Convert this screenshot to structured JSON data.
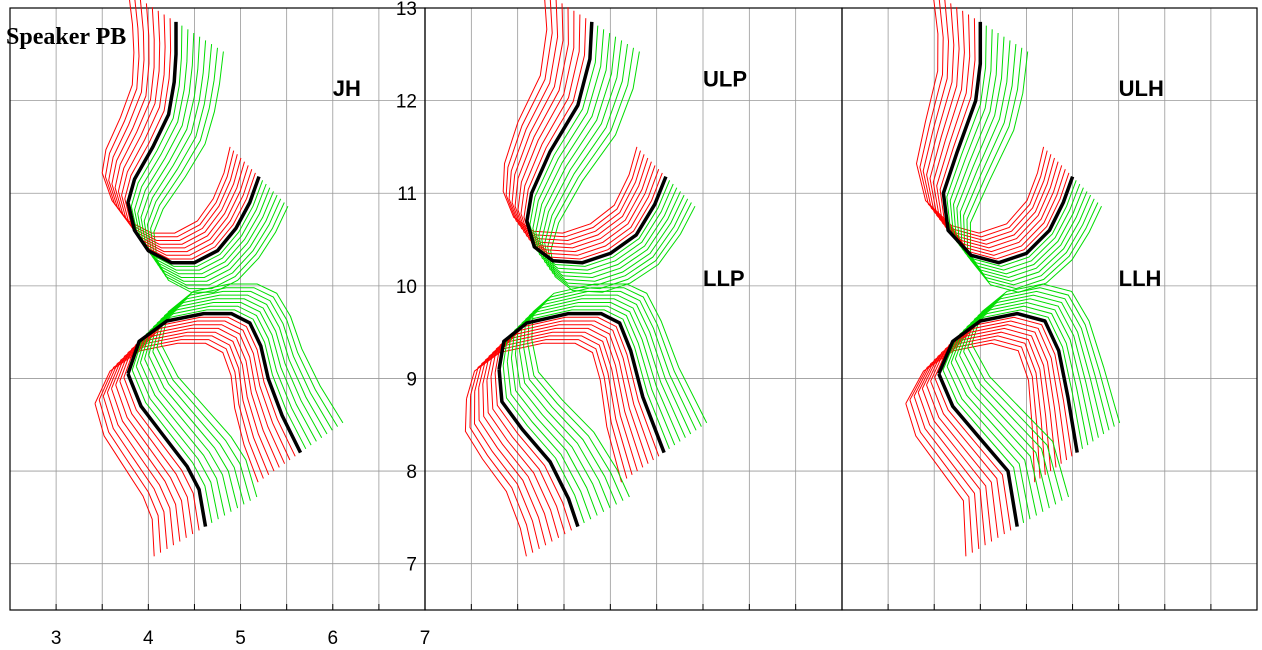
{
  "title": "Speaker PB",
  "colors": {
    "red": "#ff0000",
    "green": "#00dd00",
    "black": "#000000",
    "grid": "#999999"
  },
  "chart_data": [
    {
      "type": "line",
      "panel": "left",
      "xlim": [
        2.5,
        7
      ],
      "ylim": [
        6.5,
        13
      ],
      "xticks": [
        "3",
        "4",
        "5",
        "6",
        "7"
      ],
      "yticks": [],
      "grid": true,
      "labels": [
        {
          "text": "JH",
          "x": 6.0,
          "y": 12.05
        }
      ],
      "series": [
        {
          "color": "black",
          "points": [
            [
              4.3,
              12.85
            ],
            [
              4.3,
              12.5
            ],
            [
              4.28,
              12.2
            ],
            [
              4.22,
              11.85
            ],
            [
              4.05,
              11.5
            ],
            [
              3.85,
              11.15
            ],
            [
              3.78,
              10.9
            ],
            [
              3.85,
              10.6
            ],
            [
              4.0,
              10.38
            ],
            [
              4.25,
              10.25
            ],
            [
              4.5,
              10.25
            ],
            [
              4.75,
              10.38
            ],
            [
              4.95,
              10.62
            ],
            [
              5.1,
              10.9
            ],
            [
              5.2,
              11.18
            ]
          ]
        },
        {
          "color": "black",
          "points": [
            [
              3.78,
              9.05
            ],
            [
              3.9,
              9.4
            ],
            [
              4.2,
              9.62
            ],
            [
              4.6,
              9.7
            ],
            [
              4.9,
              9.7
            ],
            [
              5.1,
              9.6
            ],
            [
              5.22,
              9.35
            ],
            [
              5.3,
              9.0
            ],
            [
              5.45,
              8.6
            ],
            [
              5.65,
              8.2
            ]
          ]
        },
        {
          "color": "black",
          "points": [
            [
              3.78,
              9.05
            ],
            [
              3.92,
              8.7
            ],
            [
              4.15,
              8.4
            ],
            [
              4.42,
              8.05
            ],
            [
              4.55,
              7.8
            ],
            [
              4.62,
              7.4
            ]
          ]
        }
      ]
    },
    {
      "type": "line",
      "panel": "middle",
      "xlim": [
        2.5,
        7
      ],
      "ylim": [
        6.5,
        13
      ],
      "xticks": [],
      "yticks": [
        "7",
        "8",
        "9",
        "10",
        "11",
        "12",
        "13"
      ],
      "grid": true,
      "labels": [
        {
          "text": "ULP",
          "x": 5.5,
          "y": 12.15
        },
        {
          "text": "LLP",
          "x": 5.5,
          "y": 10.0
        }
      ],
      "series": [
        {
          "color": "black",
          "points": [
            [
              4.3,
              12.85
            ],
            [
              4.28,
              12.45
            ],
            [
              4.15,
              11.95
            ],
            [
              3.85,
              11.45
            ],
            [
              3.65,
              11.0
            ],
            [
              3.6,
              10.7
            ],
            [
              3.68,
              10.42
            ],
            [
              3.88,
              10.27
            ],
            [
              4.2,
              10.25
            ],
            [
              4.5,
              10.35
            ],
            [
              4.78,
              10.55
            ],
            [
              4.98,
              10.88
            ],
            [
              5.1,
              11.18
            ]
          ]
        },
        {
          "color": "black",
          "points": [
            [
              3.3,
              9.1
            ],
            [
              3.35,
              9.4
            ],
            [
              3.6,
              9.6
            ],
            [
              4.05,
              9.7
            ],
            [
              4.4,
              9.7
            ],
            [
              4.6,
              9.6
            ],
            [
              4.72,
              9.3
            ],
            [
              4.85,
              8.8
            ],
            [
              5.08,
              8.2
            ]
          ]
        },
        {
          "color": "black",
          "points": [
            [
              3.3,
              9.1
            ],
            [
              3.33,
              8.75
            ],
            [
              3.55,
              8.45
            ],
            [
              3.85,
              8.1
            ],
            [
              4.05,
              7.7
            ],
            [
              4.15,
              7.4
            ]
          ]
        }
      ]
    },
    {
      "type": "line",
      "panel": "right",
      "xlim": [
        2.5,
        7
      ],
      "ylim": [
        6.5,
        13
      ],
      "xticks": [],
      "yticks": [],
      "grid": true,
      "labels": [
        {
          "text": "ULH",
          "x": 5.5,
          "y": 12.05
        },
        {
          "text": "LLH",
          "x": 5.5,
          "y": 10.0
        }
      ],
      "series": [
        {
          "color": "black",
          "points": [
            [
              4.0,
              12.85
            ],
            [
              4.0,
              12.4
            ],
            [
              3.95,
              12.0
            ],
            [
              3.75,
              11.45
            ],
            [
              3.6,
              11.0
            ],
            [
              3.65,
              10.6
            ],
            [
              3.9,
              10.33
            ],
            [
              4.2,
              10.25
            ],
            [
              4.5,
              10.35
            ],
            [
              4.75,
              10.6
            ],
            [
              4.9,
              10.9
            ],
            [
              5.0,
              11.18
            ]
          ]
        },
        {
          "color": "black",
          "points": [
            [
              3.55,
              9.05
            ],
            [
              3.7,
              9.4
            ],
            [
              4.0,
              9.62
            ],
            [
              4.4,
              9.7
            ],
            [
              4.7,
              9.62
            ],
            [
              4.85,
              9.3
            ],
            [
              4.95,
              8.8
            ],
            [
              5.05,
              8.2
            ]
          ]
        },
        {
          "color": "black",
          "points": [
            [
              3.55,
              9.05
            ],
            [
              3.7,
              8.7
            ],
            [
              4.0,
              8.35
            ],
            [
              4.3,
              8.0
            ],
            [
              4.35,
              7.7
            ],
            [
              4.4,
              7.4
            ]
          ]
        }
      ]
    }
  ]
}
